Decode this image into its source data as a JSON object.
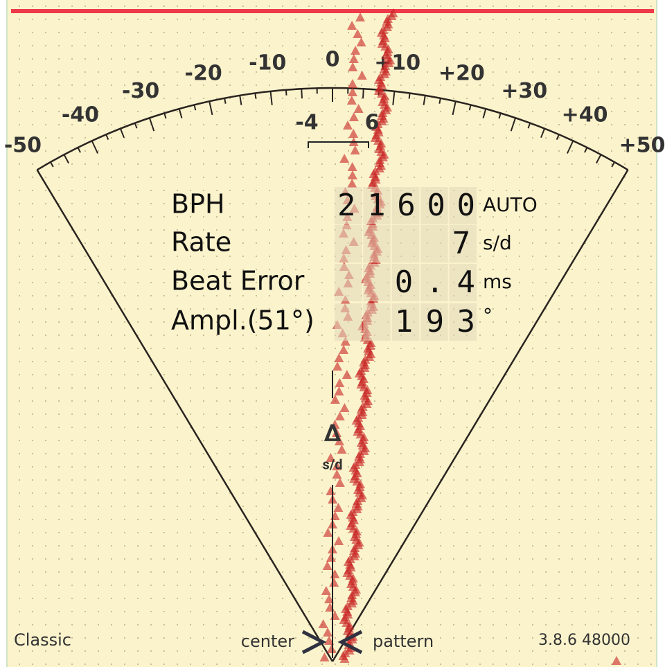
{
  "scale": {
    "labels": [
      "-50",
      "-40",
      "-30",
      "-20",
      "-10",
      "0",
      "+10",
      "+20",
      "+30",
      "+40",
      "+50"
    ]
  },
  "inner_scale": {
    "labels": [
      "-4",
      "6"
    ]
  },
  "readouts": [
    {
      "label": "BPH",
      "value": "21600",
      "unit": "AUTO"
    },
    {
      "label": "Rate",
      "value": "7",
      "unit": "s/d"
    },
    {
      "label": "Beat Error",
      "value": "0.4",
      "unit": "ms"
    },
    {
      "label": "Ampl.(51°)",
      "value": "193",
      "unit": "°"
    }
  ],
  "delta": {
    "symbol": "Δ",
    "unit": "s/d"
  },
  "footer": {
    "mode": "Classic",
    "center": "center",
    "pattern": "pattern",
    "version": "3.8.6 48000"
  }
}
